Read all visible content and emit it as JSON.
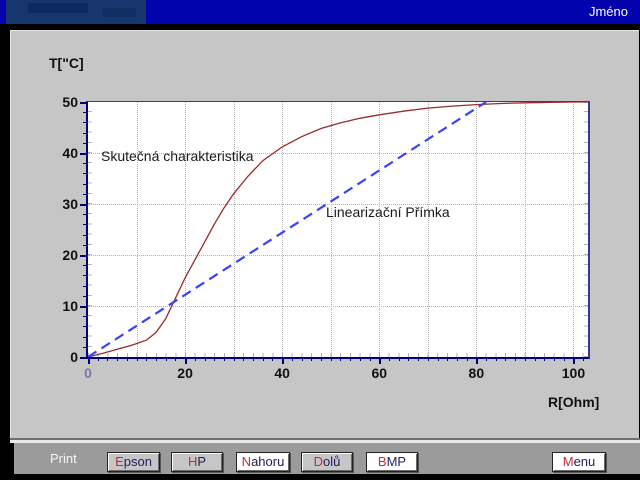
{
  "window": {
    "title": "Jméno"
  },
  "chart": {
    "y_axis_title": "T[\"C]",
    "x_axis_title": "R[Ohm]",
    "annotations": {
      "curve_label": "Skutečná charakteristika",
      "line_label": "Linearizační Přímka"
    }
  },
  "chart_data": {
    "type": "line",
    "title": "",
    "xlabel": "R[Ohm]",
    "ylabel": "T[\"C]",
    "xlim": [
      0,
      103
    ],
    "ylim": [
      0,
      50
    ],
    "grid": true,
    "grid_step_x": 10,
    "grid_step_y": 10,
    "x_ticks": [
      0,
      20,
      40,
      60,
      80,
      100
    ],
    "y_ticks": [
      0,
      10,
      20,
      30,
      40,
      50
    ],
    "minor_tick_step": 2,
    "series": [
      {
        "name": "Skutečná charakteristika",
        "color": "#962c2c",
        "style": "solid",
        "x": [
          0,
          3,
          6,
          9,
          12,
          14,
          16,
          18,
          20,
          22,
          24,
          26,
          28,
          30,
          33,
          36,
          40,
          44,
          48,
          52,
          56,
          60,
          65,
          70,
          75,
          80,
          85,
          90,
          95,
          100,
          103
        ],
        "y": [
          0,
          0.7,
          1.5,
          2.3,
          3.3,
          4.8,
          7.5,
          11.5,
          15.5,
          19,
          22.5,
          26,
          29.2,
          32,
          35.5,
          38.5,
          41.2,
          43.2,
          44.8,
          45.9,
          46.8,
          47.5,
          48.2,
          48.8,
          49.2,
          49.5,
          49.7,
          49.85,
          49.95,
          50,
          50
        ]
      },
      {
        "name": "Linearizační Přímka",
        "color": "#3642ff",
        "style": "dashed",
        "x": [
          0,
          82
        ],
        "y": [
          0,
          50
        ]
      }
    ]
  },
  "toolbar": {
    "print_label": "Print",
    "buttons": [
      {
        "label": "Epson",
        "variant": "gray"
      },
      {
        "label": "HP",
        "variant": "gray"
      },
      {
        "label": "Nahoru",
        "variant": "white"
      },
      {
        "label": "Dolů",
        "variant": "gray"
      },
      {
        "label": "BMP",
        "variant": "white"
      },
      {
        "label": "Menu",
        "variant": "white"
      }
    ]
  },
  "colors": {
    "titlebar": "#0303ae",
    "panel": "#c6c6c6",
    "toolbar": "#9b9b9b",
    "axis": "#00007e",
    "curve_red": "#962c2c",
    "line_blue": "#3642ff"
  }
}
